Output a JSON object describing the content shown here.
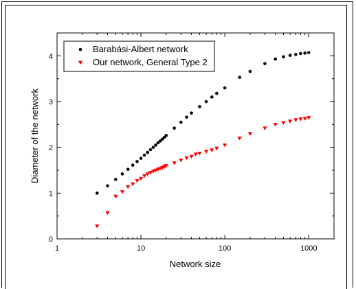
{
  "chart_data": {
    "type": "scatter",
    "xscale": "log",
    "xlim": [
      1,
      2000
    ],
    "ylim": [
      0,
      4.5
    ],
    "xlabel": "Network size",
    "ylabel": "Diameter of the network",
    "xticks": [
      1,
      10,
      100,
      1000
    ],
    "xtick_labels": [
      "1",
      "10",
      "100",
      "1000"
    ],
    "yticks": [
      0,
      1,
      2,
      3,
      4
    ],
    "ytick_labels": [
      "0",
      "1",
      "2",
      "3",
      "4"
    ],
    "grid": false,
    "legend_position": "top-left",
    "series": [
      {
        "name": "Barabási-Albert network",
        "marker": "circle",
        "color": "#000000",
        "x": [
          3,
          4,
          5,
          6,
          7,
          8,
          9,
          10,
          11,
          12,
          13,
          14,
          15,
          16,
          17,
          18,
          19,
          20,
          25,
          30,
          35,
          40,
          50,
          60,
          70,
          80,
          100,
          150,
          200,
          300,
          400,
          500,
          600,
          700,
          800,
          900,
          1000
        ],
        "y": [
          1.0,
          1.16,
          1.3,
          1.42,
          1.52,
          1.61,
          1.69,
          1.76,
          1.83,
          1.89,
          1.95,
          2.0,
          2.05,
          2.1,
          2.14,
          2.18,
          2.22,
          2.26,
          2.42,
          2.55,
          2.66,
          2.75,
          2.89,
          3.0,
          3.1,
          3.18,
          3.3,
          3.53,
          3.66,
          3.83,
          3.93,
          3.98,
          4.01,
          4.03,
          4.05,
          4.06,
          4.07
        ]
      },
      {
        "name": "Our network, General Type 2",
        "marker": "triangle-down",
        "color": "#ff0000",
        "x": [
          3,
          4,
          5,
          6,
          7,
          8,
          9,
          10,
          11,
          12,
          13,
          14,
          15,
          16,
          17,
          18,
          19,
          20,
          25,
          30,
          35,
          40,
          45,
          50,
          60,
          70,
          80,
          100,
          150,
          200,
          300,
          400,
          500,
          600,
          700,
          800,
          900,
          1000
        ],
        "y": [
          0.28,
          0.57,
          0.93,
          1.03,
          1.14,
          1.2,
          1.27,
          1.32,
          1.38,
          1.42,
          1.45,
          1.48,
          1.5,
          1.52,
          1.54,
          1.56,
          1.58,
          1.6,
          1.66,
          1.72,
          1.77,
          1.8,
          1.85,
          1.87,
          1.91,
          1.94,
          1.98,
          2.05,
          2.2,
          2.3,
          2.42,
          2.5,
          2.54,
          2.57,
          2.6,
          2.62,
          2.63,
          2.65
        ]
      }
    ]
  }
}
